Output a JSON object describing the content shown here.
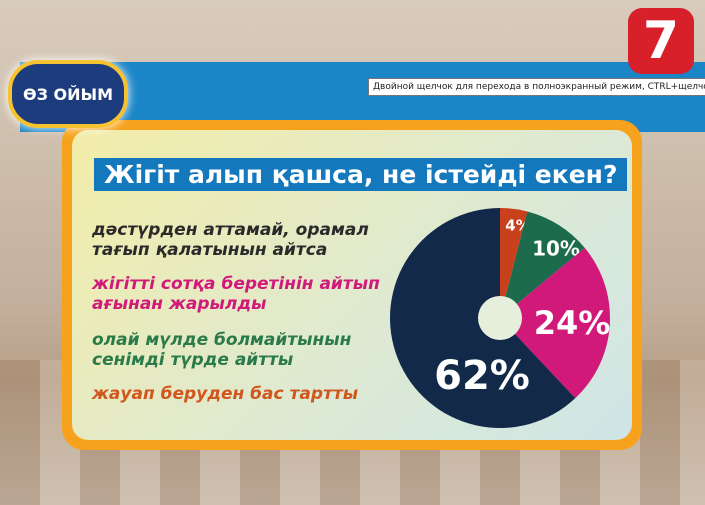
{
  "logo_text": "ӨЗ ОЙЫМ",
  "channel_logo": "7",
  "tooltip": "Двойной щелчок для перехода в полноэкранный режим, CTRL+щелчок для приведения р",
  "chart_data": {
    "type": "pie",
    "donut": true,
    "title": "Жігіт алып қашса, не істейді екен?",
    "series": [
      {
        "name": "жауап беруден бас тартты",
        "value": 4,
        "label": "4%",
        "color": "#c8401c"
      },
      {
        "name": "олай мүлде болмайтынын сенімді түрде айтты",
        "value": 10,
        "label": "10%",
        "color": "#1b6b4c"
      },
      {
        "name": "жігітті сотқа беретінін айтып ағынан жарылды",
        "value": 24,
        "label": "24%",
        "color": "#d1197a"
      },
      {
        "name": "дәстүрден аттамай, орамал тағып қалатынын айтса",
        "value": 62,
        "label": "62%",
        "color": "#13294a"
      }
    ],
    "legend": [
      {
        "text": "дәстүрден аттамай, орамал тағып қалатынын айтса",
        "color": "#2a2a2a"
      },
      {
        "text": "жігітті сотқа беретінін айтып ағынан жарылды",
        "color": "#d1197a"
      },
      {
        "text": "олай мүлде болмайтынын сенімді түрде айтты",
        "color": "#2a7a4a"
      },
      {
        "text": "жауап беруден бас тартты",
        "color": "#d0561c"
      }
    ],
    "legend_placement": "left"
  }
}
